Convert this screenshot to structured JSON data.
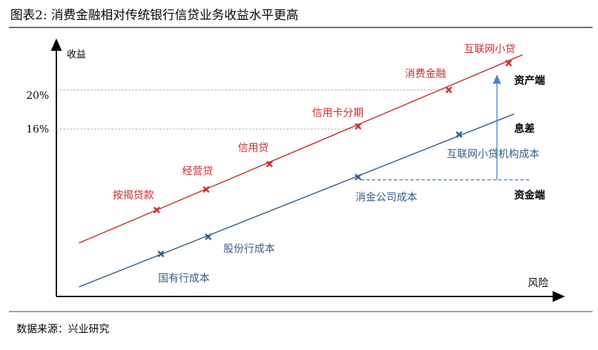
{
  "title": "图表2:   消费金融相对传统银行信贷业务收益水平更高",
  "source": "数据来源：兴业研究",
  "axes": {
    "y_label": "收益",
    "x_label": "风险",
    "y_ticks": [
      "20%",
      "16%"
    ]
  },
  "asset_side": {
    "color": "#c8292b",
    "label": "资产端",
    "items": [
      "按揭贷款",
      "经营贷",
      "信用贷",
      "信用卡分期",
      "消费金融",
      "互联网小贷"
    ]
  },
  "funding_side": {
    "color": "#2f5b86",
    "label": "资金端",
    "items": [
      "国有行成本",
      "股份行成本",
      "消金公司成本",
      "互联网小贷机构成本"
    ]
  },
  "spread_label": "息差",
  "arrow_color": "#4a86c8"
}
